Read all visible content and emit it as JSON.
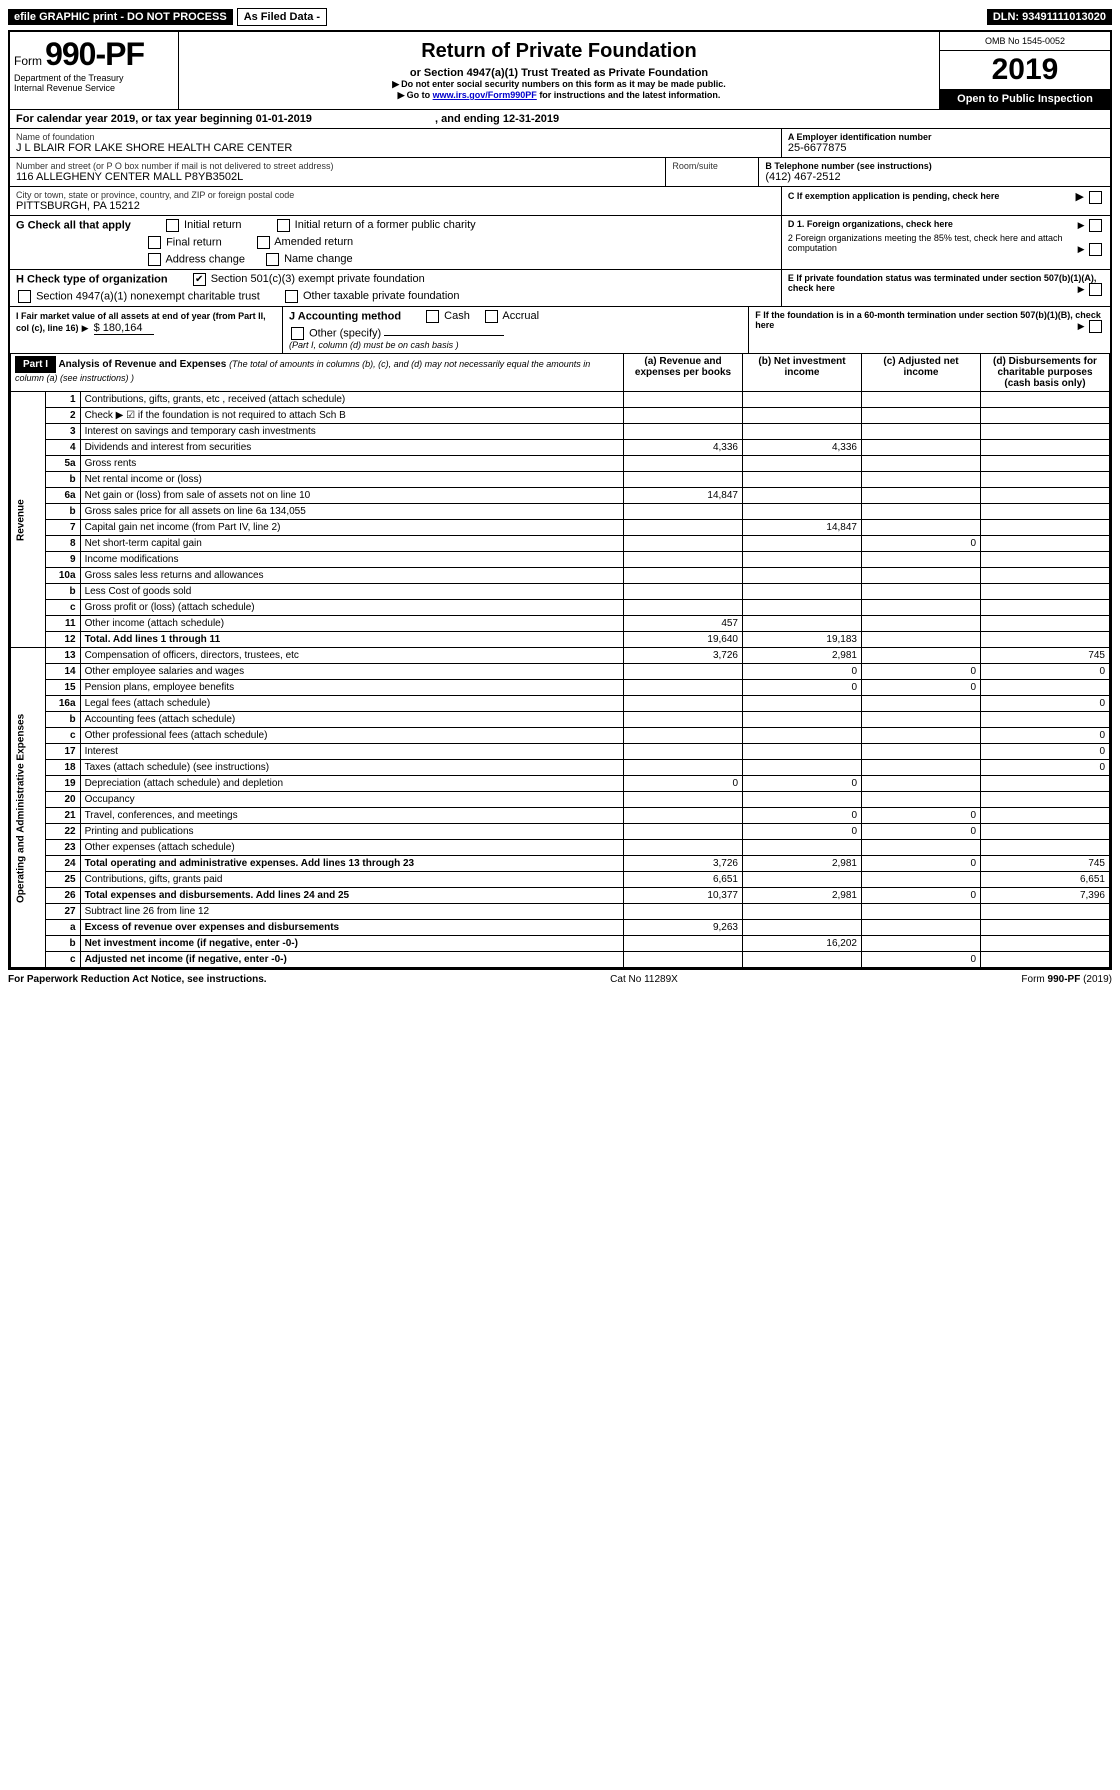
{
  "header": {
    "efile": "efile GRAPHIC print - DO NOT PROCESS",
    "as_filed": "As Filed Data -",
    "dln_label": "DLN:",
    "dln": "93491111013020",
    "form_prefix": "Form",
    "form_no": "990-PF",
    "dept": "Department of the Treasury",
    "irs": "Internal Revenue Service",
    "title": "Return of Private Foundation",
    "subtitle": "or Section 4947(a)(1) Trust Treated as Private Foundation",
    "note1": "Do not enter social security numbers on this form as it may be made public.",
    "note2_prefix": "Go to ",
    "note2_link": "www.irs.gov/Form990PF",
    "note2_suffix": " for instructions and the latest information.",
    "omb": "OMB No 1545-0052",
    "year": "2019",
    "open": "Open to Public Inspection"
  },
  "cal": {
    "prefix": "For calendar year 2019, or tax year beginning ",
    "begin": "01-01-2019",
    "mid": ", and ending ",
    "end": "12-31-2019"
  },
  "foundation": {
    "name_label": "Name of foundation",
    "name": "J L BLAIR FOR LAKE SHORE HEALTH CARE CENTER",
    "ein_label": "A Employer identification number",
    "ein": "25-6677875",
    "addr_label": "Number and street (or P O  box number if mail is not delivered to street address)",
    "room_label": "Room/suite",
    "addr": "116 ALLEGHENY CENTER MALL P8YB3502L",
    "tel_label": "B Telephone number (see instructions)",
    "tel": "(412) 467-2512",
    "city_label": "City or town, state or province, country, and ZIP or foreign postal code",
    "city": "PITTSBURGH, PA  15212",
    "c_label": "C If exemption application is pending, check here"
  },
  "checks": {
    "g_label": "G Check all that apply",
    "g_opts": [
      "Initial return",
      "Initial return of a former public charity",
      "Final return",
      "Amended return",
      "Address change",
      "Name change"
    ],
    "h_label": "H Check type of organization",
    "h_opt1": "Section 501(c)(3) exempt private foundation",
    "h_opt2": "Section 4947(a)(1) nonexempt charitable trust",
    "h_opt3": "Other taxable private foundation",
    "i_label": "I Fair market value of all assets at end of year (from Part II, col (c), line 16)",
    "i_val": "$ 180,164",
    "j_label": "J Accounting method",
    "j_cash": "Cash",
    "j_accrual": "Accrual",
    "j_other": "Other (specify)",
    "j_note": "(Part I, column (d) must be on cash basis )",
    "d1": "D 1. Foreign organizations, check here",
    "d2": "2 Foreign organizations meeting the 85% test, check here and attach computation",
    "e": "E  If private foundation status was terminated under section 507(b)(1)(A), check here",
    "f": "F  If the foundation is in a 60-month termination under section 507(b)(1)(B), check here"
  },
  "part1": {
    "label": "Part I",
    "title": "Analysis of Revenue and Expenses",
    "note": "(The total of amounts in columns (b), (c), and (d) may not necessarily equal the amounts in column (a) (see instructions) )",
    "cols": {
      "a": "(a) Revenue and expenses per books",
      "b": "(b) Net investment income",
      "c": "(c) Adjusted net income",
      "d": "(d) Disbursements for charitable purposes (cash basis only)"
    }
  },
  "sections": {
    "rev": "Revenue",
    "exp": "Operating and Administrative Expenses"
  },
  "lines": [
    {
      "no": "1",
      "desc": "Contributions, gifts, grants, etc , received (attach schedule)",
      "a": "",
      "b": "",
      "c": "",
      "d": ""
    },
    {
      "no": "2",
      "desc": "Check ▶ ☑ if the foundation is not required to attach Sch  B",
      "a": "",
      "b": "",
      "c": "",
      "d": ""
    },
    {
      "no": "3",
      "desc": "Interest on savings and temporary cash investments",
      "a": "",
      "b": "",
      "c": "",
      "d": ""
    },
    {
      "no": "4",
      "desc": "Dividends and interest from securities",
      "a": "4,336",
      "b": "4,336",
      "c": "",
      "d": ""
    },
    {
      "no": "5a",
      "desc": "Gross rents",
      "a": "",
      "b": "",
      "c": "",
      "d": ""
    },
    {
      "no": "b",
      "desc": "Net rental income or (loss)",
      "a": "",
      "b": "",
      "c": "",
      "d": ""
    },
    {
      "no": "6a",
      "desc": "Net gain or (loss) from sale of assets not on line 10",
      "a": "14,847",
      "b": "",
      "c": "",
      "d": ""
    },
    {
      "no": "b",
      "desc": "Gross sales price for all assets on line 6a          134,055",
      "a": "",
      "b": "",
      "c": "",
      "d": ""
    },
    {
      "no": "7",
      "desc": "Capital gain net income (from Part IV, line 2)",
      "a": "",
      "b": "14,847",
      "c": "",
      "d": ""
    },
    {
      "no": "8",
      "desc": "Net short-term capital gain",
      "a": "",
      "b": "",
      "c": "0",
      "d": ""
    },
    {
      "no": "9",
      "desc": "Income modifications",
      "a": "",
      "b": "",
      "c": "",
      "d": ""
    },
    {
      "no": "10a",
      "desc": "Gross sales less returns and allowances",
      "a": "",
      "b": "",
      "c": "",
      "d": ""
    },
    {
      "no": "b",
      "desc": "Less  Cost of goods sold",
      "a": "",
      "b": "",
      "c": "",
      "d": ""
    },
    {
      "no": "c",
      "desc": "Gross profit or (loss) (attach schedule)",
      "a": "",
      "b": "",
      "c": "",
      "d": ""
    },
    {
      "no": "11",
      "desc": "Other income (attach schedule)",
      "a": "457",
      "b": "",
      "c": "",
      "d": ""
    },
    {
      "no": "12",
      "desc": "Total. Add lines 1 through 11",
      "a": "19,640",
      "b": "19,183",
      "c": "",
      "d": "",
      "bold": true
    },
    {
      "no": "13",
      "desc": "Compensation of officers, directors, trustees, etc",
      "a": "3,726",
      "b": "2,981",
      "c": "",
      "d": "745"
    },
    {
      "no": "14",
      "desc": "Other employee salaries and wages",
      "a": "",
      "b": "0",
      "c": "0",
      "d": "0"
    },
    {
      "no": "15",
      "desc": "Pension plans, employee benefits",
      "a": "",
      "b": "0",
      "c": "0",
      "d": ""
    },
    {
      "no": "16a",
      "desc": "Legal fees (attach schedule)",
      "a": "",
      "b": "",
      "c": "",
      "d": "0"
    },
    {
      "no": "b",
      "desc": "Accounting fees (attach schedule)",
      "a": "",
      "b": "",
      "c": "",
      "d": ""
    },
    {
      "no": "c",
      "desc": "Other professional fees (attach schedule)",
      "a": "",
      "b": "",
      "c": "",
      "d": "0"
    },
    {
      "no": "17",
      "desc": "Interest",
      "a": "",
      "b": "",
      "c": "",
      "d": "0"
    },
    {
      "no": "18",
      "desc": "Taxes (attach schedule) (see instructions)",
      "a": "",
      "b": "",
      "c": "",
      "d": "0"
    },
    {
      "no": "19",
      "desc": "Depreciation (attach schedule) and depletion",
      "a": "0",
      "b": "0",
      "c": "",
      "d": ""
    },
    {
      "no": "20",
      "desc": "Occupancy",
      "a": "",
      "b": "",
      "c": "",
      "d": ""
    },
    {
      "no": "21",
      "desc": "Travel, conferences, and meetings",
      "a": "",
      "b": "0",
      "c": "0",
      "d": ""
    },
    {
      "no": "22",
      "desc": "Printing and publications",
      "a": "",
      "b": "0",
      "c": "0",
      "d": ""
    },
    {
      "no": "23",
      "desc": "Other expenses (attach schedule)",
      "a": "",
      "b": "",
      "c": "",
      "d": ""
    },
    {
      "no": "24",
      "desc": "Total operating and administrative expenses. Add lines 13 through 23",
      "a": "3,726",
      "b": "2,981",
      "c": "0",
      "d": "745",
      "bold": true
    },
    {
      "no": "25",
      "desc": "Contributions, gifts, grants paid",
      "a": "6,651",
      "b": "",
      "c": "",
      "d": "6,651"
    },
    {
      "no": "26",
      "desc": "Total expenses and disbursements. Add lines 24 and 25",
      "a": "10,377",
      "b": "2,981",
      "c": "0",
      "d": "7,396",
      "bold": true
    },
    {
      "no": "27",
      "desc": "Subtract line 26 from line 12",
      "a": "",
      "b": "",
      "c": "",
      "d": ""
    },
    {
      "no": "a",
      "desc": "Excess of revenue over expenses and disbursements",
      "a": "9,263",
      "b": "",
      "c": "",
      "d": "",
      "bold": true
    },
    {
      "no": "b",
      "desc": "Net investment income (if negative, enter -0-)",
      "a": "",
      "b": "16,202",
      "c": "",
      "d": "",
      "bold": true
    },
    {
      "no": "c",
      "desc": "Adjusted net income (if negative, enter -0-)",
      "a": "",
      "b": "",
      "c": "0",
      "d": "",
      "bold": true
    }
  ],
  "footer": {
    "left": "For Paperwork Reduction Act Notice, see instructions.",
    "mid": "Cat No  11289X",
    "right": "Form 990-PF (2019)"
  }
}
